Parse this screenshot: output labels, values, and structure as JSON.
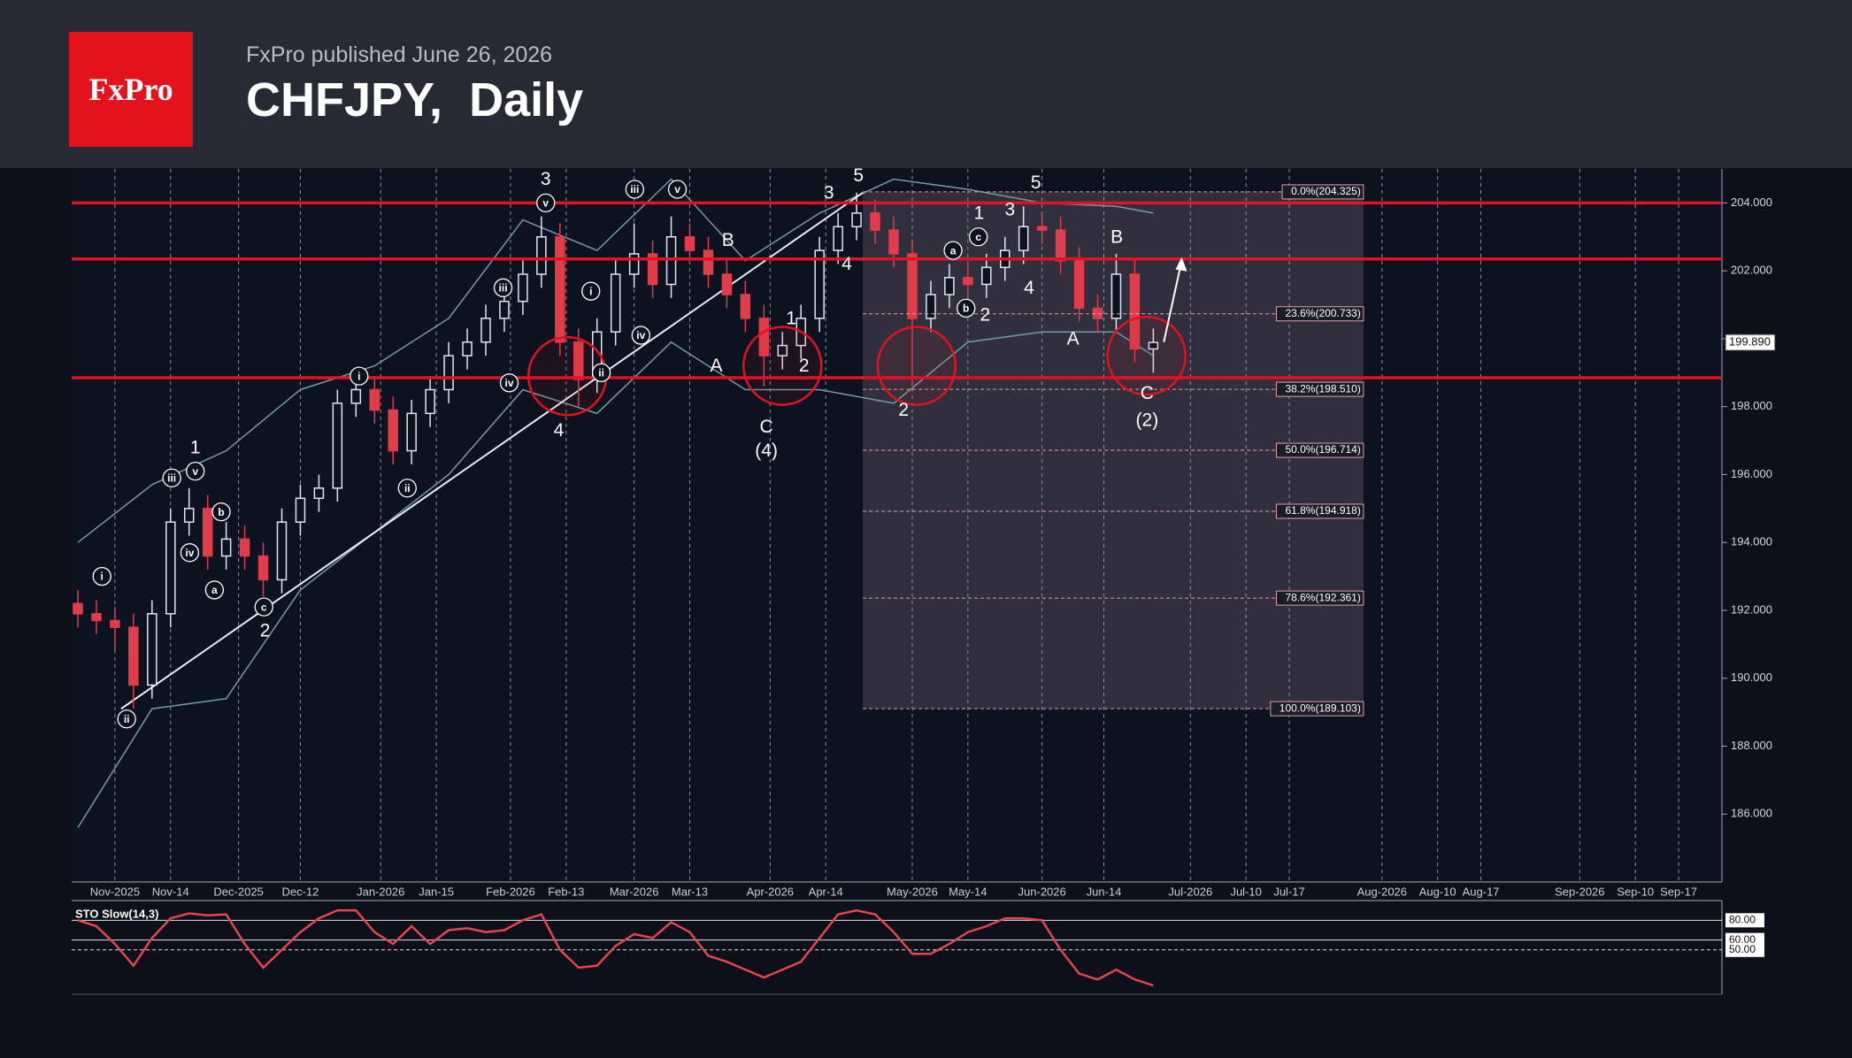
{
  "header": {
    "logo": "FxPro",
    "published": "FxPro published June 26, 2026",
    "title": "CHFJPY,  Daily"
  },
  "chart_data": [
    {
      "type": "candlestick",
      "xlim": [
        -7,
        260
      ],
      "ylim": [
        184,
        205
      ],
      "yticks": [
        {
          "value": 186,
          "label": "186.000"
        },
        {
          "value": 188,
          "label": "188.000"
        },
        {
          "value": 190,
          "label": "190.000"
        },
        {
          "value": 192,
          "label": "192.000"
        },
        {
          "value": 194,
          "label": "194.000"
        },
        {
          "value": 196,
          "label": "196.000"
        },
        {
          "value": 198,
          "label": "198.000"
        },
        {
          "value": 200,
          "label": "200.000"
        },
        {
          "value": 202,
          "label": "202.000"
        },
        {
          "value": 204,
          "label": "204.000"
        }
      ],
      "xticks": [
        {
          "value": 0,
          "label": "Nov-2025"
        },
        {
          "value": 9,
          "label": "Nov-14"
        },
        {
          "value": 20,
          "label": "Dec-2025"
        },
        {
          "value": 30,
          "label": "Dec-12"
        },
        {
          "value": 43,
          "label": "Jan-2026"
        },
        {
          "value": 52,
          "label": "Jan-15"
        },
        {
          "value": 64,
          "label": "Feb-2026"
        },
        {
          "value": 73,
          "label": "Feb-13"
        },
        {
          "value": 84,
          "label": "Mar-2026"
        },
        {
          "value": 93,
          "label": "Mar-13"
        },
        {
          "value": 106,
          "label": "Apr-2026"
        },
        {
          "value": 115,
          "label": "Apr-14"
        },
        {
          "value": 129,
          "label": "May-2026"
        },
        {
          "value": 138,
          "label": "May-14"
        },
        {
          "value": 150,
          "label": "Jun-2026"
        },
        {
          "value": 160,
          "label": "Jun-14"
        },
        {
          "value": 174,
          "label": "Jul-2026"
        },
        {
          "value": 183,
          "label": "Jul-10"
        },
        {
          "value": 190,
          "label": "Jul-17"
        },
        {
          "value": 205,
          "label": "Aug-2026"
        },
        {
          "value": 214,
          "label": "Aug-10"
        },
        {
          "value": 221,
          "label": "Aug-17"
        },
        {
          "value": 237,
          "label": "Sep-2026"
        },
        {
          "value": 246,
          "label": "Sep-10"
        },
        {
          "value": 253,
          "label": "Sep-17"
        }
      ],
      "grid": true,
      "up_color": "#dfe6f0",
      "down_color": "#e03c4a",
      "x": [
        -6,
        -3,
        0,
        3,
        6,
        9,
        12,
        15,
        18,
        21,
        24,
        27,
        30,
        33,
        36,
        39,
        42,
        45,
        48,
        51,
        54,
        57,
        60,
        63,
        66,
        69,
        72,
        75,
        78,
        81,
        84,
        87,
        90,
        93,
        96,
        99,
        102,
        105,
        108,
        111,
        114,
        117,
        120,
        123,
        126,
        129,
        132,
        135,
        138,
        141,
        144,
        147,
        150,
        153,
        156,
        159,
        162,
        165,
        168
      ],
      "ohlc": [
        [
          192.2,
          192.6,
          191.5,
          191.9
        ],
        [
          191.9,
          192.3,
          191.3,
          191.7
        ],
        [
          191.7,
          192.1,
          190.8,
          191.5
        ],
        [
          191.5,
          191.9,
          189.1,
          189.8
        ],
        [
          189.8,
          192.3,
          189.4,
          191.9
        ],
        [
          191.9,
          195.0,
          191.5,
          194.6
        ],
        [
          194.6,
          195.6,
          194.2,
          195.0
        ],
        [
          195.0,
          195.4,
          193.2,
          193.6
        ],
        [
          193.6,
          194.6,
          193.2,
          194.1
        ],
        [
          194.1,
          194.5,
          193.2,
          193.6
        ],
        [
          193.6,
          194.0,
          192.4,
          192.9
        ],
        [
          192.9,
          195.0,
          192.5,
          194.6
        ],
        [
          194.6,
          195.7,
          194.2,
          195.3
        ],
        [
          195.3,
          196.0,
          194.9,
          195.6
        ],
        [
          195.6,
          198.5,
          195.2,
          198.1
        ],
        [
          198.1,
          198.9,
          197.7,
          198.5
        ],
        [
          198.5,
          198.9,
          197.5,
          197.9
        ],
        [
          197.9,
          198.3,
          196.3,
          196.7
        ],
        [
          196.7,
          198.2,
          196.3,
          197.8
        ],
        [
          197.8,
          198.9,
          197.4,
          198.5
        ],
        [
          198.5,
          199.9,
          198.1,
          199.5
        ],
        [
          199.5,
          200.3,
          199.1,
          199.9
        ],
        [
          199.9,
          201.0,
          199.5,
          200.6
        ],
        [
          200.6,
          201.5,
          200.2,
          201.1
        ],
        [
          201.1,
          202.3,
          200.7,
          201.9
        ],
        [
          201.9,
          203.6,
          201.5,
          203.0
        ],
        [
          203.0,
          203.4,
          199.5,
          199.9
        ],
        [
          199.9,
          200.3,
          198.0,
          198.8
        ],
        [
          198.8,
          200.6,
          198.4,
          200.2
        ],
        [
          200.2,
          202.3,
          199.8,
          201.9
        ],
        [
          201.9,
          203.4,
          201.5,
          202.5
        ],
        [
          202.5,
          202.9,
          201.2,
          201.6
        ],
        [
          201.6,
          203.6,
          201.2,
          203.0
        ],
        [
          203.0,
          203.4,
          202.2,
          202.6
        ],
        [
          202.6,
          203.0,
          201.5,
          201.9
        ],
        [
          201.9,
          202.3,
          200.9,
          201.3
        ],
        [
          201.3,
          201.7,
          200.2,
          200.6
        ],
        [
          200.6,
          201.0,
          198.6,
          199.5
        ],
        [
          199.5,
          200.2,
          199.1,
          199.8
        ],
        [
          199.8,
          201.0,
          199.4,
          200.6
        ],
        [
          200.6,
          203.0,
          200.2,
          202.6
        ],
        [
          202.6,
          203.7,
          202.2,
          203.3
        ],
        [
          203.3,
          204.3,
          202.9,
          203.7
        ],
        [
          203.7,
          204.1,
          202.8,
          203.2
        ],
        [
          203.2,
          203.6,
          202.1,
          202.5
        ],
        [
          202.5,
          202.9,
          198.6,
          200.6
        ],
        [
          200.6,
          201.7,
          200.2,
          201.3
        ],
        [
          201.3,
          202.2,
          200.9,
          201.8
        ],
        [
          201.8,
          202.2,
          201.2,
          201.6
        ],
        [
          201.6,
          202.5,
          201.2,
          202.1
        ],
        [
          202.1,
          203.0,
          201.7,
          202.6
        ],
        [
          202.6,
          203.9,
          202.2,
          203.3
        ],
        [
          203.3,
          203.7,
          202.8,
          203.2
        ],
        [
          203.2,
          203.6,
          201.9,
          202.3
        ],
        [
          202.3,
          202.7,
          200.5,
          200.9
        ],
        [
          200.9,
          201.3,
          200.2,
          200.6
        ],
        [
          200.6,
          202.5,
          200.2,
          201.9
        ],
        [
          201.9,
          202.3,
          199.3,
          199.7
        ],
        [
          199.7,
          200.3,
          199.0,
          199.89
        ]
      ],
      "bands": {
        "color": "#6f9ea6",
        "x": [
          -6,
          6,
          18,
          30,
          42,
          54,
          66,
          78,
          90,
          102,
          114,
          126,
          138,
          150,
          162,
          168
        ],
        "upper": [
          194.0,
          195.7,
          196.7,
          198.5,
          199.2,
          200.6,
          203.5,
          202.6,
          204.7,
          202.3,
          203.7,
          204.7,
          204.4,
          204.0,
          203.9,
          203.7
        ],
        "lower": [
          185.6,
          189.1,
          189.4,
          192.6,
          194.3,
          196.0,
          198.5,
          197.8,
          199.9,
          198.5,
          198.5,
          198.1,
          199.9,
          200.2,
          200.2,
          199.5
        ]
      },
      "current_price": {
        "value": 199.89,
        "label": "199.890"
      },
      "resistance_lines": [
        204.0,
        202.35,
        198.85
      ],
      "trendline": {
        "x": [
          1,
          121
        ],
        "y": [
          189.1,
          204.3
        ]
      },
      "fib": {
        "x": [
          121,
          202
        ],
        "levels": [
          {
            "value": 204.325,
            "label": "0.0%(204.325)"
          },
          {
            "value": 200.733,
            "label": "23.6%(200.733)"
          },
          {
            "value": 198.51,
            "label": "38.2%(198.510)"
          },
          {
            "value": 196.714,
            "label": "50.0%(196.714)"
          },
          {
            "value": 194.918,
            "label": "61.8%(194.918)"
          },
          {
            "value": 192.361,
            "label": "78.6%(192.361)"
          },
          {
            "value": 189.103,
            "label": "100.0%(189.103)"
          }
        ]
      },
      "circles": [
        {
          "x": 73.2,
          "y": 198.9
        },
        {
          "x": 108,
          "y": 199.2
        },
        {
          "x": 129.7,
          "y": 199.2
        },
        {
          "x": 166.9,
          "y": 199.5
        }
      ],
      "arrow": {
        "x": [
          169.7,
          172.6
        ],
        "y": [
          199.9,
          202.3
        ]
      },
      "waves": [
        {
          "text": "i",
          "x": -2.1,
          "y": 193.0,
          "circled": true
        },
        {
          "text": "ii",
          "x": 1.9,
          "y": 188.8,
          "circled": true
        },
        {
          "text": "iii",
          "x": 9.2,
          "y": 195.9,
          "circled": true
        },
        {
          "text": "iv",
          "x": 12.1,
          "y": 193.7,
          "circled": true
        },
        {
          "text": "v",
          "x": 13,
          "y": 196.1,
          "circled": true
        },
        {
          "text": "1",
          "x": 13,
          "y": 196.8,
          "circled": false
        },
        {
          "text": "a",
          "x": 16.1,
          "y": 192.6,
          "circled": true
        },
        {
          "text": "b",
          "x": 17.2,
          "y": 194.9,
          "circled": true
        },
        {
          "text": "c",
          "x": 24.1,
          "y": 192.1,
          "circled": true
        },
        {
          "text": "2",
          "x": 24.3,
          "y": 191.4,
          "circled": false
        },
        {
          "text": "i",
          "x": 39.5,
          "y": 198.9,
          "circled": true
        },
        {
          "text": "ii",
          "x": 47.3,
          "y": 195.6,
          "circled": true
        },
        {
          "text": "iii",
          "x": 62.8,
          "y": 201.5,
          "circled": true
        },
        {
          "text": "iv",
          "x": 63.8,
          "y": 198.7,
          "circled": true
        },
        {
          "text": "v",
          "x": 69.7,
          "y": 204.0,
          "circled": true
        },
        {
          "text": "3",
          "x": 69.7,
          "y": 204.7,
          "circled": false
        },
        {
          "text": "4",
          "x": 71.8,
          "y": 197.3,
          "circled": false
        },
        {
          "text": "i",
          "x": 77,
          "y": 201.4,
          "circled": true
        },
        {
          "text": "ii",
          "x": 78.7,
          "y": 199.0,
          "circled": true
        },
        {
          "text": "iii",
          "x": 84.1,
          "y": 204.4,
          "circled": true
        },
        {
          "text": "iv",
          "x": 85.1,
          "y": 200.1,
          "circled": true
        },
        {
          "text": "v",
          "x": 91,
          "y": 204.4,
          "circled": true
        },
        {
          "text": "B",
          "x": 99.2,
          "y": 202.9,
          "circled": false
        },
        {
          "text": "A",
          "x": 97.3,
          "y": 199.2,
          "circled": false
        },
        {
          "text": "C",
          "x": 105.4,
          "y": 197.4,
          "circled": false
        },
        {
          "text": "(4)",
          "x": 105.4,
          "y": 196.7,
          "circled": false
        },
        {
          "text": "1",
          "x": 109.4,
          "y": 200.6,
          "circled": false
        },
        {
          "text": "2",
          "x": 111.5,
          "y": 199.2,
          "circled": false
        },
        {
          "text": "3",
          "x": 115.5,
          "y": 204.3,
          "circled": false
        },
        {
          "text": "4",
          "x": 118.4,
          "y": 202.2,
          "circled": false
        },
        {
          "text": "5",
          "x": 120.3,
          "y": 204.8,
          "circled": false
        },
        {
          "text": "2",
          "x": 127.6,
          "y": 197.9,
          "circled": false
        },
        {
          "text": "1",
          "x": 139.8,
          "y": 203.7,
          "circled": false
        },
        {
          "text": "a",
          "x": 135.6,
          "y": 202.6,
          "circled": true
        },
        {
          "text": "b",
          "x": 137.7,
          "y": 200.9,
          "circled": true
        },
        {
          "text": "c",
          "x": 139.7,
          "y": 203.0,
          "circled": true
        },
        {
          "text": "2",
          "x": 140.8,
          "y": 200.7,
          "circled": false
        },
        {
          "text": "3",
          "x": 144.8,
          "y": 203.8,
          "circled": false
        },
        {
          "text": "4",
          "x": 147.9,
          "y": 201.5,
          "circled": false
        },
        {
          "text": "5",
          "x": 149,
          "y": 204.6,
          "circled": false
        },
        {
          "text": "A",
          "x": 155,
          "y": 200.0,
          "circled": false
        },
        {
          "text": "B",
          "x": 162.1,
          "y": 203.0,
          "circled": false
        },
        {
          "text": "C",
          "x": 167,
          "y": 198.4,
          "circled": false
        },
        {
          "text": "(2)",
          "x": 167,
          "y": 197.6,
          "circled": false
        }
      ]
    },
    {
      "type": "line",
      "title": "STO Slow(14,3)",
      "xlim": [
        -7,
        260
      ],
      "ylim": [
        5,
        100
      ],
      "yticks": [
        {
          "value": 80,
          "label": "80.00"
        },
        {
          "value": 60,
          "label": "60.00"
        },
        {
          "value": 50,
          "label": "50.00"
        }
      ],
      "x": [
        -6,
        -3,
        0,
        3,
        6,
        9,
        12,
        15,
        18,
        21,
        24,
        27,
        30,
        33,
        36,
        39,
        42,
        45,
        48,
        51,
        54,
        57,
        60,
        63,
        66,
        69,
        72,
        75,
        78,
        81,
        84,
        87,
        90,
        93,
        96,
        99,
        102,
        105,
        108,
        111,
        114,
        117,
        120,
        123,
        126,
        129,
        132,
        135,
        138,
        141,
        144,
        147,
        150,
        153,
        156,
        159,
        162,
        165,
        168
      ],
      "series": [
        {
          "color": "#e8434e",
          "values": [
            80,
            74,
            56,
            34,
            62,
            82,
            87,
            85,
            86,
            56,
            32,
            50,
            68,
            82,
            90,
            90,
            68,
            56,
            74,
            56,
            70,
            72,
            68,
            70,
            80,
            86,
            50,
            32,
            34,
            54,
            66,
            62,
            78,
            68,
            44,
            38,
            30,
            22,
            30,
            38,
            62,
            86,
            90,
            86,
            68,
            46,
            46,
            56,
            68,
            74,
            82,
            82,
            80,
            50,
            26,
            20,
            30,
            20,
            14
          ]
        }
      ]
    }
  ]
}
